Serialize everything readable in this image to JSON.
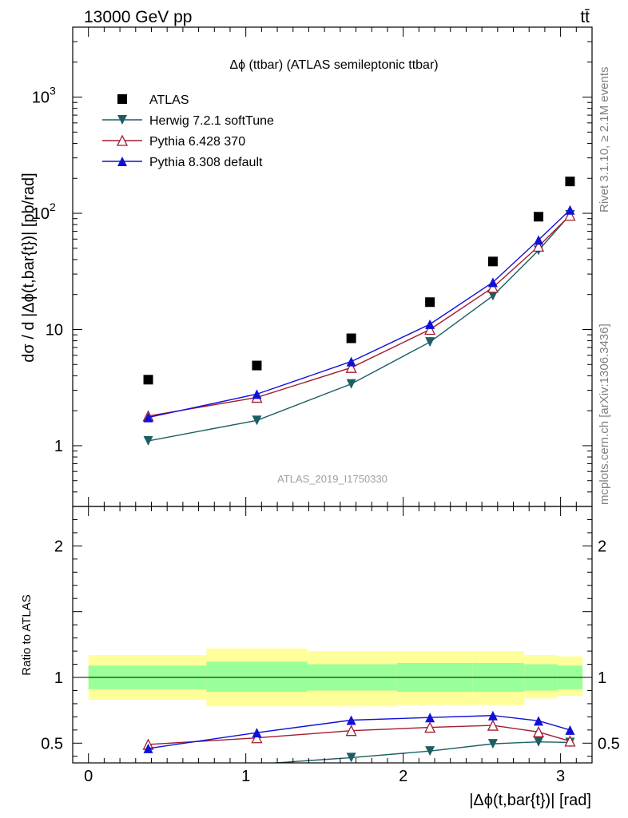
{
  "header": {
    "energy_label": "13000 GeV pp",
    "process_label": "tt̄"
  },
  "side_labels": {
    "rivet": "Rivet 3.1.10, ≥ 2.1M events",
    "mcplots": "mcplots.cern.ch [arXiv:1306.3436]"
  },
  "chart_data": {
    "type": "scatter",
    "title": "Δϕ (ttbar) (ATLAS semileptonic ttbar)",
    "watermark": "ATLAS_2019_I1750330",
    "xlabel": "|Δϕ(t,bar{t})| [rad]",
    "ylabel": "dσ / d |Δϕ(t,bar{t})| [pb/rad]",
    "ratio_ylabel": "Ratio to ATLAS",
    "xlim": [
      -0.1,
      3.2
    ],
    "ylim": [
      0.3,
      4000
    ],
    "yscale": "log",
    "ratio_ylim": [
      0.35,
      2.3
    ],
    "x_ticks": [
      0,
      1,
      2,
      3
    ],
    "x_tick_labels": [
      "0",
      "1",
      "2",
      "3"
    ],
    "y_ticks": [
      1,
      10,
      100,
      1000
    ],
    "y_tick_labels": [
      "1",
      "10",
      "10^2",
      "10^3"
    ],
    "ratio_ticks": [
      0.5,
      1,
      2
    ],
    "ratio_tick_labels": [
      "0.5",
      "1",
      "2"
    ],
    "bins": [
      {
        "x": 0.38,
        "lo": 0.0,
        "hi": 0.75
      },
      {
        "x": 1.07,
        "lo": 0.75,
        "hi": 1.39
      },
      {
        "x": 1.67,
        "lo": 1.39,
        "hi": 1.96
      },
      {
        "x": 2.17,
        "lo": 1.96,
        "hi": 2.44
      },
      {
        "x": 2.57,
        "lo": 2.44,
        "hi": 2.77
      },
      {
        "x": 2.86,
        "lo": 2.77,
        "hi": 2.98
      },
      {
        "x": 3.06,
        "lo": 2.98,
        "hi": 3.14
      }
    ],
    "data": {
      "name": "ATLAS",
      "color": "#000000",
      "values": [
        3.7,
        4.9,
        8.4,
        17.2,
        38.5,
        93.5,
        188
      ],
      "band_stat": [
        [
          0.91,
          1.09
        ],
        [
          0.89,
          1.12
        ],
        [
          0.9,
          1.1
        ],
        [
          0.89,
          1.11
        ],
        [
          0.89,
          1.11
        ],
        [
          0.9,
          1.1
        ],
        [
          0.91,
          1.09
        ]
      ],
      "band_total": [
        [
          0.83,
          1.17
        ],
        [
          0.78,
          1.22
        ],
        [
          0.78,
          1.2
        ],
        [
          0.79,
          1.2
        ],
        [
          0.79,
          1.2
        ],
        [
          0.84,
          1.17
        ],
        [
          0.86,
          1.16
        ]
      ]
    },
    "series": [
      {
        "name": "Herwig 7.2.1 softTune",
        "color": "#1b5e63",
        "marker": "triangle-down",
        "values": [
          1.1,
          1.65,
          3.4,
          7.8,
          19.5,
          48,
          97
        ],
        "ratio": [
          0.3,
          0.34,
          0.39,
          0.44,
          0.495,
          0.51,
          0.505
        ]
      },
      {
        "name": "Pythia 6.428 370",
        "color": "#a01c2c",
        "marker": "triangle-open",
        "values": [
          1.8,
          2.6,
          4.7,
          10.0,
          23,
          52,
          96
        ],
        "ratio": [
          0.49,
          0.54,
          0.595,
          0.62,
          0.635,
          0.585,
          0.515
        ]
      },
      {
        "name": "Pythia 8.308 default",
        "color": "#1010d8",
        "marker": "triangle-up",
        "values": [
          1.75,
          2.78,
          5.3,
          11.1,
          25.5,
          59,
          107
        ],
        "ratio": [
          0.46,
          0.58,
          0.675,
          0.695,
          0.71,
          0.67,
          0.6
        ]
      }
    ],
    "legend_position": "top-left"
  }
}
